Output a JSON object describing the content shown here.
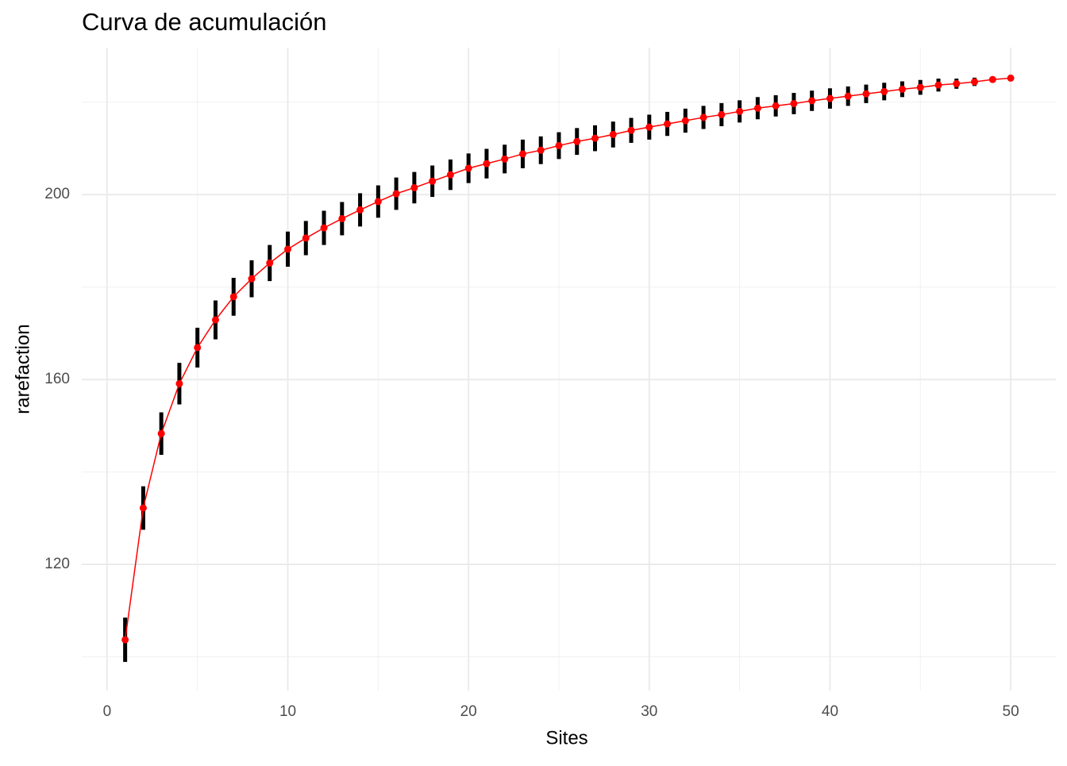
{
  "chart_data": {
    "type": "line",
    "title": "Curva de acumulación",
    "x_label": "Sites",
    "y_label": "rarefaction",
    "x": [
      1,
      2,
      3,
      4,
      5,
      6,
      7,
      8,
      9,
      10,
      11,
      12,
      13,
      14,
      15,
      16,
      17,
      18,
      19,
      20,
      21,
      22,
      23,
      24,
      25,
      26,
      27,
      28,
      29,
      30,
      31,
      32,
      33,
      34,
      35,
      36,
      37,
      38,
      39,
      40,
      41,
      42,
      43,
      44,
      45,
      46,
      47,
      48,
      49,
      50
    ],
    "values": [
      103.7,
      132.2,
      148.3,
      159.1,
      166.9,
      172.9,
      177.9,
      181.8,
      185.2,
      188.2,
      190.6,
      192.8,
      194.8,
      196.7,
      198.5,
      200.2,
      201.5,
      202.9,
      204.3,
      205.7,
      206.7,
      207.7,
      208.8,
      209.6,
      210.6,
      211.5,
      212.2,
      213.0,
      213.9,
      214.6,
      215.3,
      216.0,
      216.7,
      217.3,
      218.0,
      218.7,
      219.2,
      219.7,
      220.3,
      220.8,
      221.3,
      221.8,
      222.3,
      222.8,
      223.2,
      223.7,
      224.0,
      224.4,
      224.9,
      225.2
    ],
    "errors": [
      4.8,
      4.7,
      4.6,
      4.5,
      4.3,
      4.2,
      4.1,
      4.0,
      3.9,
      3.8,
      3.7,
      3.7,
      3.6,
      3.6,
      3.5,
      3.5,
      3.4,
      3.4,
      3.3,
      3.2,
      3.2,
      3.1,
      3.1,
      3.0,
      2.9,
      2.9,
      2.8,
      2.8,
      2.7,
      2.7,
      2.6,
      2.6,
      2.5,
      2.5,
      2.4,
      2.4,
      2.3,
      2.3,
      2.2,
      2.2,
      2.1,
      2.0,
      1.9,
      1.7,
      1.6,
      1.4,
      1.1,
      0.9,
      0.6,
      0
    ],
    "color": "#ff0000",
    "errorbar_color": "#000000",
    "xlim": [
      -1.4,
      52.5
    ],
    "ylim": [
      92.7,
      231.8
    ],
    "xticks": [
      0,
      10,
      20,
      30,
      40,
      50
    ],
    "x_minor_ticks": [
      5,
      15,
      25,
      35,
      45
    ],
    "yticks": [
      120,
      160,
      200
    ],
    "y_minor_ticks": [
      100,
      140,
      180,
      220
    ],
    "grid": true
  }
}
